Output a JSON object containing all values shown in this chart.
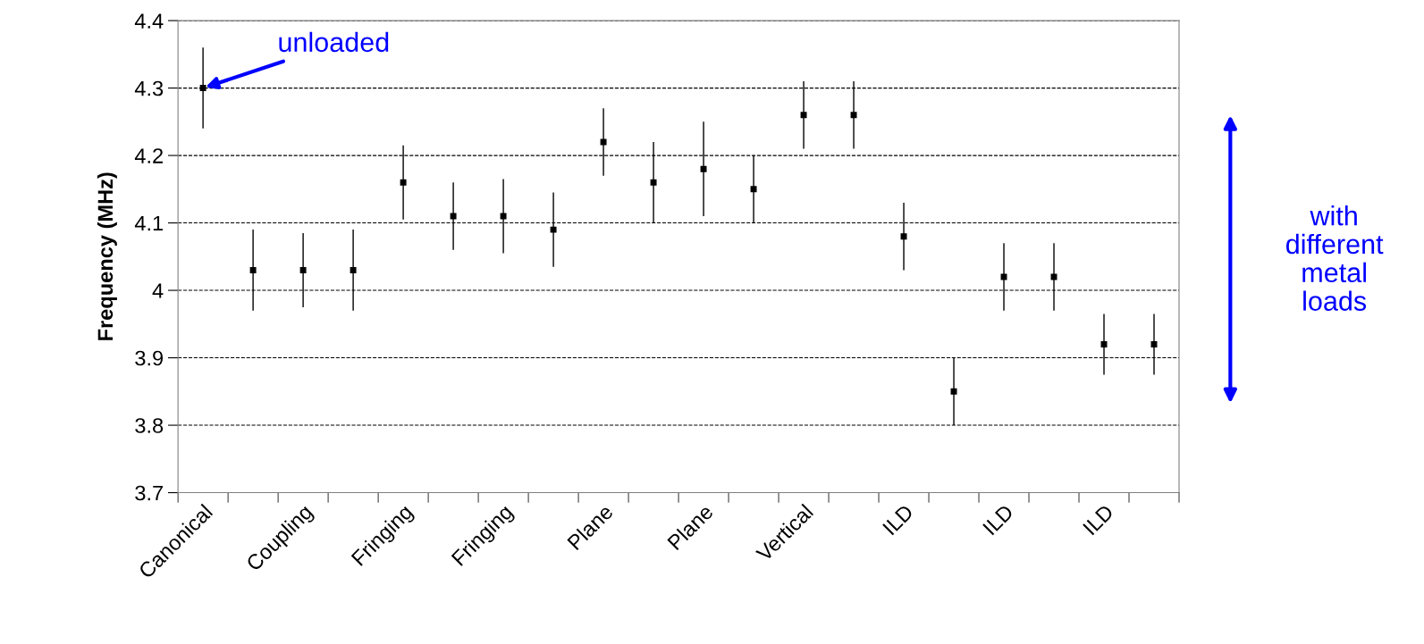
{
  "chart_data": {
    "type": "scatter",
    "ylabel": "Frequency (MHz)",
    "categories": [
      "Canonical",
      null,
      "Coupling",
      null,
      "Fringing",
      null,
      "Fringing",
      null,
      "Plane",
      null,
      "Plane",
      null,
      "Vertical",
      null,
      "ILD",
      null,
      "ILD",
      null,
      "ILD",
      null
    ],
    "series": [
      {
        "color": "#000000",
        "values": [
          4.3,
          4.03,
          4.03,
          4.03,
          4.16,
          4.11,
          4.11,
          4.09,
          4.22,
          4.16,
          4.18,
          4.15,
          4.26,
          4.26,
          4.08,
          3.85,
          4.02,
          4.02,
          3.92,
          3.92
        ],
        "errors": [
          0.06,
          0.06,
          0.055,
          0.06,
          0.055,
          0.05,
          0.055,
          0.055,
          0.05,
          0.06,
          0.07,
          0.05,
          0.05,
          0.05,
          0.05,
          0.05,
          0.05,
          0.05,
          0.045,
          0.045
        ]
      }
    ],
    "ylim": [
      3.7,
      4.4
    ],
    "yticks": [
      3.7,
      3.8,
      3.9,
      4,
      4.1,
      4.2,
      4.3,
      4.4
    ],
    "grid": "y",
    "marker": "square",
    "annotations": [
      {
        "text": "unloaded",
        "x": "Canonical",
        "y": 4.3
      },
      "with\ndifferent\nmetal\nloads"
    ]
  }
}
